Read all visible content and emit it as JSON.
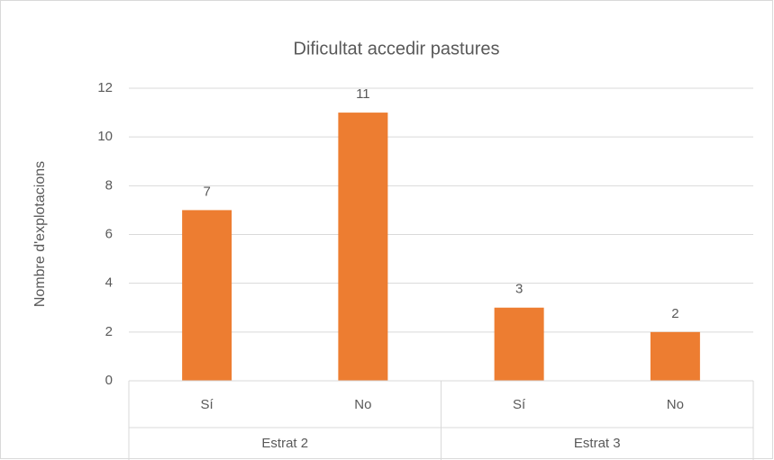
{
  "chart_data": {
    "type": "bar",
    "title": "Dificultat accedir pastures",
    "y_label": "Nombre d'explotacions",
    "categories": [
      "Sí",
      "No",
      "Sí",
      "No"
    ],
    "groups": [
      "Estrat 2",
      "Estrat 3"
    ],
    "values": [
      7,
      11,
      3,
      2
    ],
    "color": "#ed7d31",
    "ylim": [
      0,
      12
    ],
    "yticks": [
      0,
      2,
      4,
      6,
      8,
      10,
      12
    ],
    "grid": true
  }
}
